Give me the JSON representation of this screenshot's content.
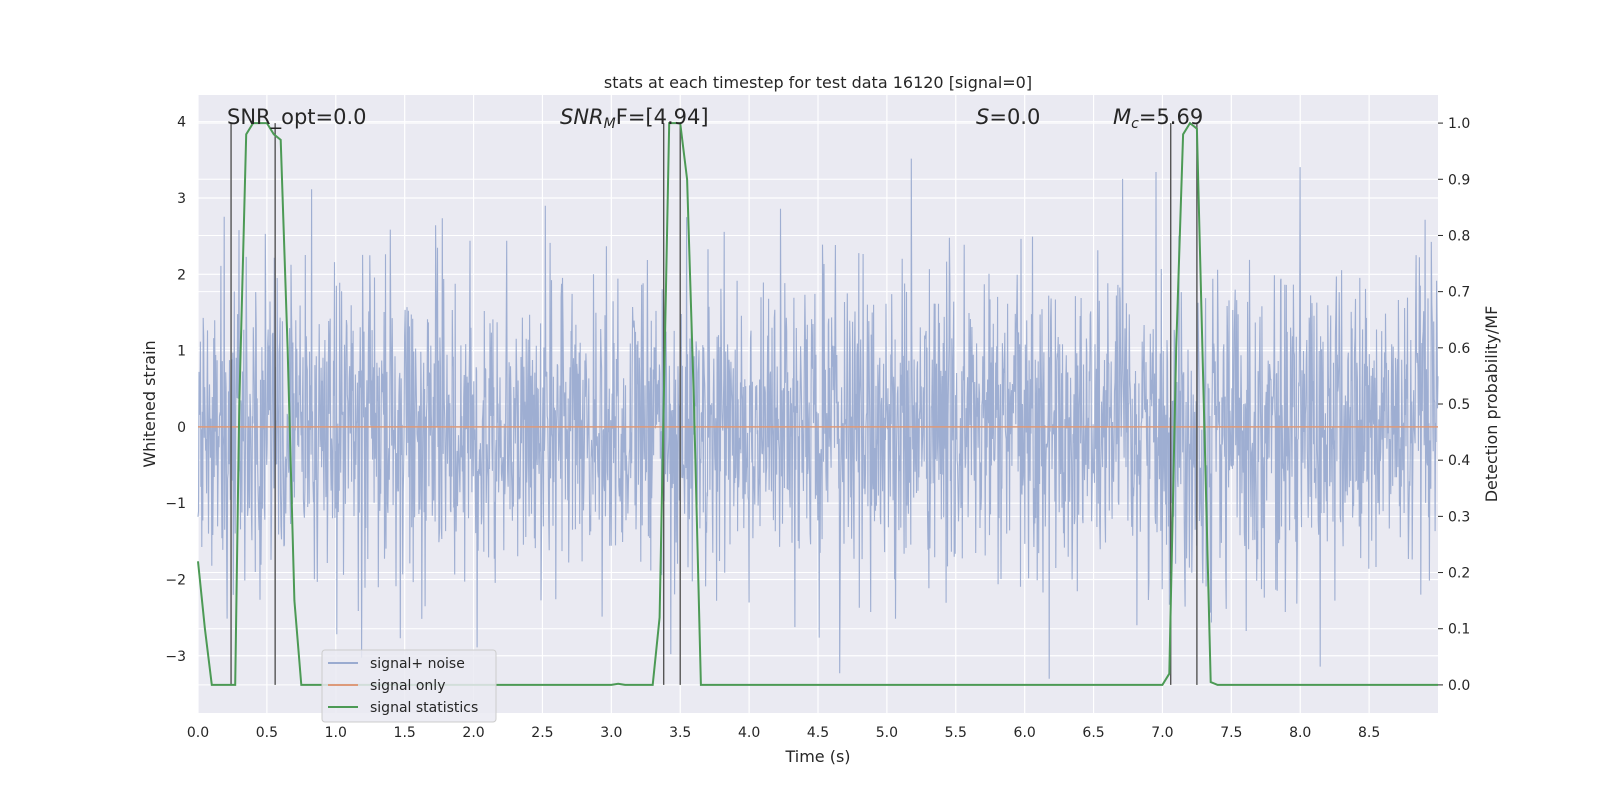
{
  "chart_data": {
    "type": "line",
    "title": "stats at each timestep for test data 16120 [signal=0]",
    "xlabel": "Time (s)",
    "ylabel": "Whitened strain",
    "ylabel_right": "Detection probability/MF",
    "xlim": [
      0.0,
      9.0
    ],
    "ylim": [
      -3.75,
      4.35
    ],
    "ylim_right": [
      -0.05,
      1.05
    ],
    "x_ticks": [
      "0.0",
      "0.5",
      "1.0",
      "1.5",
      "2.0",
      "2.5",
      "3.0",
      "3.5",
      "4.0",
      "4.5",
      "5.0",
      "5.5",
      "6.0",
      "6.5",
      "7.0",
      "7.5",
      "8.0",
      "8.5"
    ],
    "y_ticks": [
      "−3",
      "−2",
      "−1",
      "0",
      "1",
      "2",
      "3",
      "4"
    ],
    "y_ticks_right": [
      "0.0",
      "0.1",
      "0.2",
      "0.3",
      "0.4",
      "0.5",
      "0.6",
      "0.7",
      "0.8",
      "0.9",
      "1.0"
    ],
    "grid": true,
    "legend_placement": "lower-left",
    "annotations": {
      "snr_opt": "SNR_opt=0.0",
      "snr_mf_prefix": "SNR",
      "snr_mf_sub": "M",
      "snr_mf_rest": "F=[4.94]",
      "s_italic": "S",
      "s_rest": "=0.0",
      "mc_italic": "M",
      "mc_sub": "c",
      "mc_rest": "=5.69"
    },
    "series": [
      {
        "name": "signal+ noise",
        "axis": "left",
        "color": "#9aabd0",
        "description": "dense gaussian-like whitened noise, roughly within ±2 with spikes up to about ±4",
        "envelope": [
          -3.3,
          4.0
        ]
      },
      {
        "name": "signal only",
        "axis": "left",
        "color": "#dd9a7a",
        "x": [
          0.0,
          9.0
        ],
        "y": [
          0.0,
          0.0
        ]
      },
      {
        "name": "signal statistics",
        "axis": "right",
        "color": "#4c9a55",
        "x": [
          0.0,
          0.05,
          0.1,
          0.24,
          0.27,
          0.3,
          0.35,
          0.4,
          0.5,
          0.55,
          0.6,
          0.65,
          0.7,
          0.75,
          1.0,
          2.0,
          2.5,
          3.0,
          3.05,
          3.1,
          3.2,
          3.3,
          3.35,
          3.38,
          3.42,
          3.5,
          3.55,
          3.6,
          3.65,
          3.7,
          4.0,
          5.0,
          6.0,
          7.0,
          7.05,
          7.1,
          7.15,
          7.2,
          7.25,
          7.3,
          7.35,
          7.4,
          8.0,
          9.0
        ],
        "y": [
          0.22,
          0.1,
          0.0,
          0.0,
          0.0,
          0.5,
          0.98,
          1.0,
          1.0,
          0.98,
          0.97,
          0.6,
          0.15,
          0.0,
          0.0,
          0.0,
          0.0,
          0.0,
          0.002,
          0.0,
          0.0,
          0.0,
          0.12,
          0.5,
          1.0,
          1.0,
          0.9,
          0.5,
          0.0,
          0.0,
          0.0,
          0.0,
          0.0,
          0.0,
          0.02,
          0.6,
          0.98,
          1.0,
          0.99,
          0.5,
          0.005,
          0.0,
          0.0,
          0.0
        ]
      }
    ],
    "markers": {
      "description": "dark vertical lines marking detection segments",
      "color": "#555555",
      "x": [
        0.24,
        0.56,
        3.38,
        3.5,
        7.06,
        7.25
      ]
    }
  }
}
